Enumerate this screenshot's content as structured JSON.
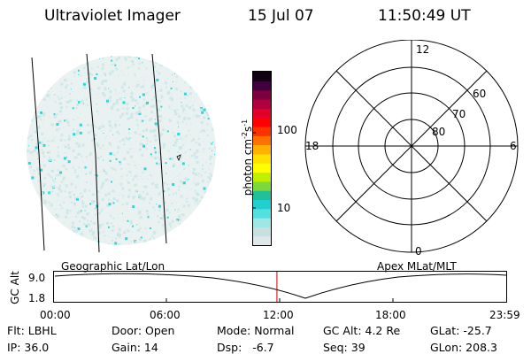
{
  "header": {
    "title": "Ultraviolet Imager",
    "date": "15 Jul 07",
    "time": "11:50:49 UT"
  },
  "colorbar": {
    "unit_label": "photon cm",
    "unit_exp1": "-2",
    "unit_s": "s",
    "unit_exp2": "-1",
    "tick_100": "100",
    "tick_10": "10",
    "colors": [
      "#dfe8e8",
      "#c8e0e0",
      "#9fe6e6",
      "#55e0e0",
      "#20d0d0",
      "#22c09a",
      "#7fd83a",
      "#c0f000",
      "#ffff00",
      "#ffe000",
      "#ffb000",
      "#ff7000",
      "#ff3000",
      "#ff0000",
      "#e0002a",
      "#b00040",
      "#7a0040",
      "#400040",
      "#100010"
    ]
  },
  "polar": {
    "mlt_labels": {
      "top": "12",
      "left": "18",
      "right": "6",
      "bottom": "0"
    },
    "lat_labels": [
      "60",
      "70",
      "80"
    ]
  },
  "timeline": {
    "ylabel": "GC Alt",
    "ytick_top": "9.0",
    "ytick_bottom": "1.8",
    "left_label": "Geographic Lat/Lon",
    "right_label": "Apex  MLat/MLT",
    "xticks": [
      "00:00",
      "06:00",
      "12:00",
      "18:00",
      "23:59"
    ],
    "current_time_fraction": 0.493,
    "marker_color": "#c00000"
  },
  "info": {
    "filter": "Flt: LBHL",
    "ip": "IP: 36.0",
    "door": "Door: Open",
    "gain": "Gain: 14",
    "mode": "Mode: Normal",
    "dsp": "Dsp:   -6.7",
    "gc_alt": "GC Alt: 4.2 Re",
    "seq": "Seq: 39",
    "glat": "GLat: -25.7",
    "glon": "GLon: 208.3"
  },
  "colors": {
    "aurora_light": "#cfe7e7",
    "aurora_cyan": "#2fd6d6"
  }
}
